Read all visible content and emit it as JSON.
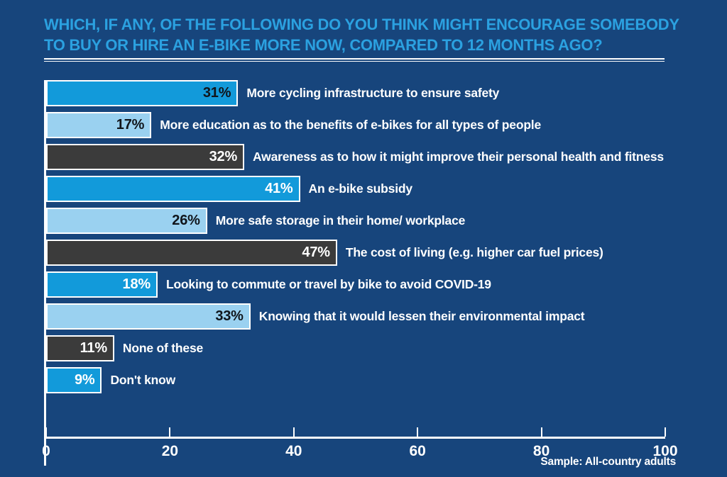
{
  "colors": {
    "background": "#17457C",
    "title": "#2BA1E0",
    "bar_blue": "#129ADA",
    "bar_light_blue": "#9AD1F0",
    "bar_dark": "#3B3B3B",
    "axis": "#FFFFFF",
    "label_text": "#FFFFFF",
    "value_text_dark": "#10151B",
    "value_text_light": "#FFFFFF"
  },
  "title": {
    "line1": "WHICH, IF ANY, OF THE FOLLOWING DO YOU THINK MIGHT ENCOURAGE SOMEBODY",
    "line2": "TO BUY OR HIRE AN E-BIKE MORE NOW, COMPARED TO 12 MONTHS AGO?"
  },
  "footnote": "Sample: All-country adults",
  "chart_data": {
    "type": "bar",
    "orientation": "horizontal",
    "title": "WHICH, IF ANY, OF THE FOLLOWING DO YOU THINK MIGHT ENCOURAGE SOMEBODY TO BUY OR HIRE AN E-BIKE MORE NOW, COMPARED TO 12 MONTHS AGO?",
    "xlabel": "",
    "ylabel": "",
    "xlim": [
      0,
      100
    ],
    "xticks": [
      0,
      20,
      40,
      60,
      80,
      100
    ],
    "grid": false,
    "legend": false,
    "footnote": "Sample: All-country adults",
    "categories": [
      "More cycling infrastructure to ensure safety",
      "More education as to the benefits of e-bikes for all types of people",
      "Awareness as to how it might improve their personal health and fitness",
      "An e-bike subsidy",
      "More safe storage in their home/ workplace",
      "The cost of living (e.g. higher car fuel prices)",
      "Looking to commute or travel by bike to avoid COVID-19",
      "Knowing that it would lessen their environmental impact",
      "None of these",
      "Don't know"
    ],
    "values": [
      31,
      17,
      32,
      41,
      26,
      47,
      18,
      33,
      11,
      9
    ],
    "bars": [
      {
        "label": "More cycling infrastructure to ensure safety",
        "value": 31,
        "display": "31%",
        "color_key": "bar_blue",
        "value_color_key": "value_text_dark"
      },
      {
        "label": "More education as to the benefits of e-bikes for all types of people",
        "value": 17,
        "display": "17%",
        "color_key": "bar_light_blue",
        "value_color_key": "value_text_dark"
      },
      {
        "label": "Awareness as to how it might improve their personal health and fitness",
        "value": 32,
        "display": "32%",
        "color_key": "bar_dark",
        "value_color_key": "value_text_light"
      },
      {
        "label": "An e-bike subsidy",
        "value": 41,
        "display": "41%",
        "color_key": "bar_blue",
        "value_color_key": "value_text_light"
      },
      {
        "label": "More safe storage in their home/ workplace",
        "value": 26,
        "display": "26%",
        "color_key": "bar_light_blue",
        "value_color_key": "value_text_dark"
      },
      {
        "label": "The cost of living (e.g. higher car fuel prices)",
        "value": 47,
        "display": "47%",
        "color_key": "bar_dark",
        "value_color_key": "value_text_light"
      },
      {
        "label": "Looking to commute or travel by bike to avoid COVID-19",
        "value": 18,
        "display": "18%",
        "color_key": "bar_blue",
        "value_color_key": "value_text_light"
      },
      {
        "label": "Knowing that it would lessen their environmental impact",
        "value": 33,
        "display": "33%",
        "color_key": "bar_light_blue",
        "value_color_key": "value_text_dark"
      },
      {
        "label": "None of these",
        "value": 11,
        "display": "11%",
        "color_key": "bar_dark",
        "value_color_key": "value_text_light"
      },
      {
        "label": "Don't know",
        "value": 9,
        "display": "9%",
        "color_key": "bar_blue",
        "value_color_key": "value_text_light"
      }
    ]
  }
}
